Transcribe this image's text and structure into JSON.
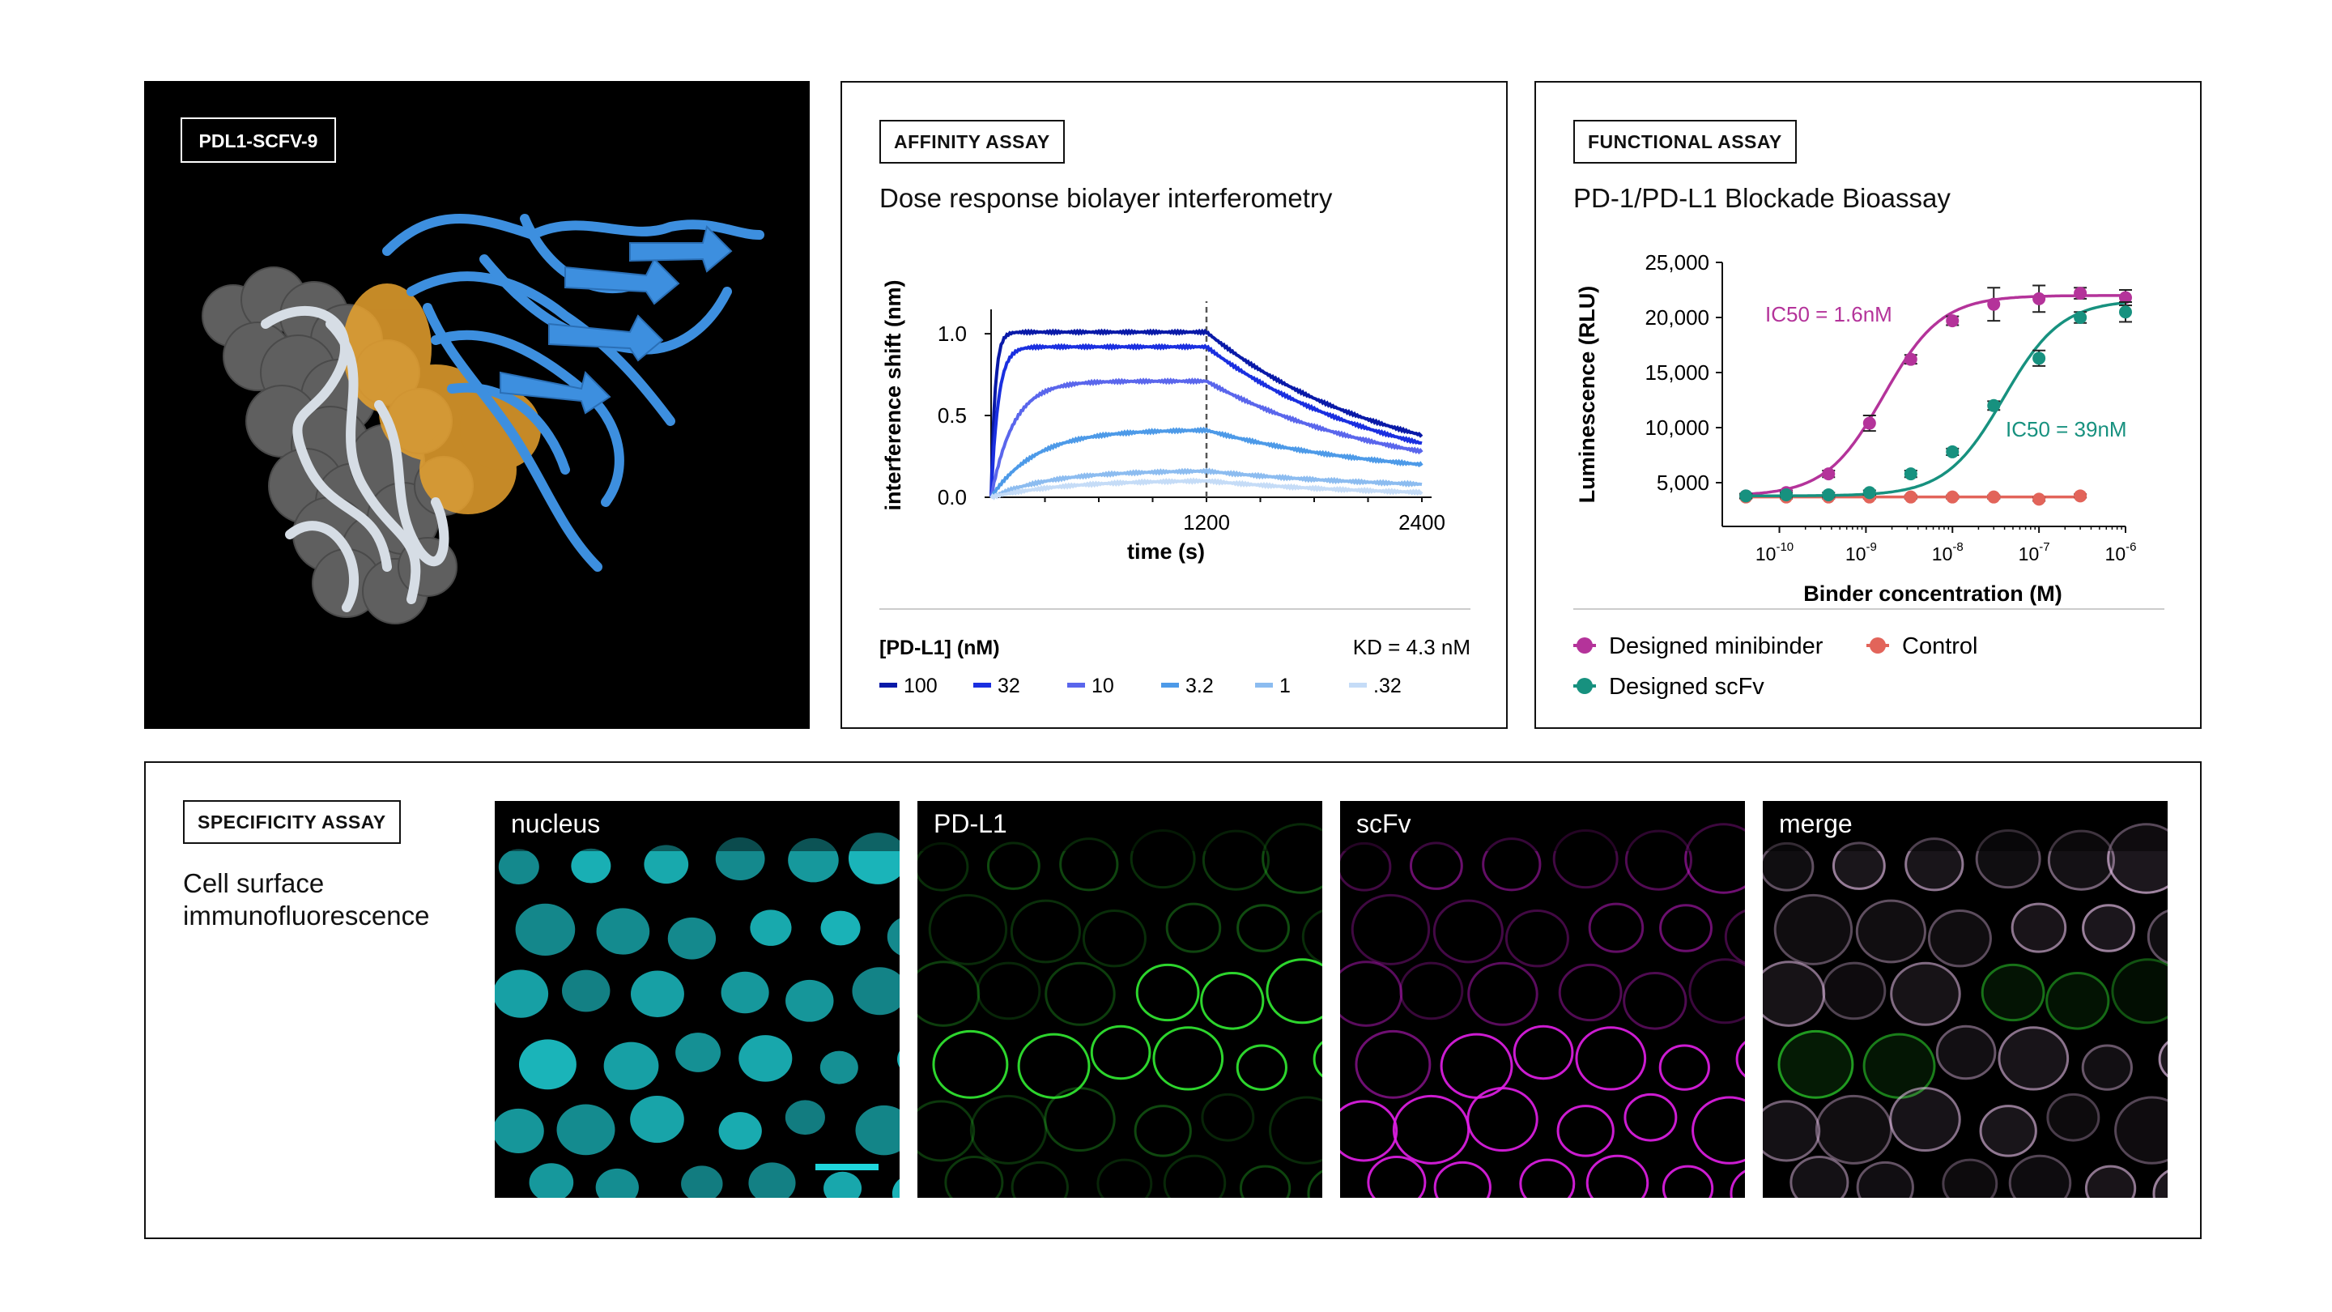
{
  "structure_panel": {
    "tag": "PDL1-SCFV-9",
    "colors": {
      "background": "#000000",
      "surface": "#5f5f5f",
      "interface": "#e8a22e",
      "binder": "#3d8fdf",
      "target_ribbon": "#d6dde5"
    }
  },
  "affinity_panel": {
    "tag": "AFFINITY ASSAY",
    "subtitle": "Dose response biolayer interferometry",
    "legend_title": "[PD-L1] (nM)",
    "kd_text": "KD = 4.3 nM"
  },
  "functional_panel": {
    "tag": "FUNCTIONAL ASSAY",
    "subtitle": "PD-1/PD-L1 Blockade Bioassay",
    "ic50_minibinder": "IC50 = 1.6nM",
    "ic50_scfv": "IC50 = 39nM"
  },
  "specificity_panel": {
    "tag": "SPECIFICITY ASSAY",
    "subtitle_line1": "Cell surface",
    "subtitle_line2": "immunofluorescence",
    "tiles": [
      {
        "label": "nucleus",
        "color": "#1fd6dc"
      },
      {
        "label": "PD-L1",
        "color": "#2fe02f"
      },
      {
        "label": "scFv",
        "color": "#e21fe8"
      },
      {
        "label": "merge",
        "color": "#e6bfe8"
      }
    ]
  },
  "chart_data": [
    {
      "type": "line",
      "xlabel": "time (s)",
      "ylabel": "interference shift (nm)",
      "xlim": [
        0,
        2400
      ],
      "ylim": [
        0,
        1.05
      ],
      "xticks": [
        1200,
        2400
      ],
      "yticks": [
        0.0,
        0.5,
        1.0
      ],
      "ytick_labels": [
        "0.0",
        "0.5",
        "1.0"
      ],
      "dissociation_start": 1200,
      "series": [
        {
          "name": "100",
          "color": "#0a1aa8",
          "association_plateau": 1.01,
          "end_value": 0.38
        },
        {
          "name": "32",
          "color": "#1a2fe0",
          "association_plateau": 0.92,
          "end_value": 0.33
        },
        {
          "name": "10",
          "color": "#5a66ec",
          "association_plateau": 0.71,
          "end_value": 0.28
        },
        {
          "name": "3.2",
          "color": "#4d9ae8",
          "association_plateau": 0.41,
          "end_value": 0.2
        },
        {
          "name": "1",
          "color": "#8cbcf0",
          "association_plateau": 0.16,
          "end_value": 0.08
        },
        {
          "name": ".32",
          "color": "#c5dcf7",
          "association_plateau": 0.1,
          "end_value": 0.03
        }
      ]
    },
    {
      "type": "scatter",
      "xlabel": "Binder concentration (M)",
      "ylabel": "Luminescence (RLU)",
      "x_scale": "log",
      "xlim": [
        4e-11,
        1e-06
      ],
      "ylim": [
        2500,
        25000
      ],
      "yticks": [
        5000,
        10000,
        15000,
        20000,
        25000
      ],
      "ytick_labels": [
        "5,000",
        "10,000",
        "15,000",
        "20,000",
        "25,000"
      ],
      "xticks": [
        1e-10,
        1e-09,
        1e-08,
        1e-07,
        1e-06
      ],
      "xtick_bases": [
        "10",
        "10",
        "10",
        "10",
        "10"
      ],
      "xtick_exponents": [
        "-10",
        "-9",
        "-8",
        "-7",
        "-6"
      ],
      "series": [
        {
          "name": "Designed minibinder",
          "color": "#b4339a",
          "x": [
            4.1e-11,
            1.2e-10,
            3.7e-10,
            1.1e-09,
            3.3e-09,
            1e-08,
            3e-08,
            1e-07,
            3e-07,
            1e-06
          ],
          "y": [
            3800,
            4100,
            5800,
            10400,
            16200,
            19700,
            21200,
            21700,
            22200,
            21800
          ],
          "err": [
            200,
            200,
            300,
            700,
            400,
            400,
            1500,
            1200,
            500,
            700
          ],
          "fit_bottom": 3800,
          "fit_top": 22000,
          "ic50": 1.6e-09
        },
        {
          "name": "Control",
          "color": "#e2645a",
          "x": [
            4.1e-11,
            1.2e-10,
            3.7e-10,
            1.1e-09,
            3.3e-09,
            1e-08,
            3e-08,
            1e-07,
            3e-07
          ],
          "y": [
            3700,
            3700,
            3700,
            3700,
            3700,
            3700,
            3700,
            3500,
            3800
          ],
          "err": [
            150,
            150,
            150,
            150,
            150,
            150,
            150,
            150,
            150
          ]
        },
        {
          "name": "Designed scFv",
          "color": "#17917f",
          "x": [
            4.1e-11,
            1.2e-10,
            3.7e-10,
            1.1e-09,
            3.3e-09,
            1e-08,
            3e-08,
            1e-07,
            3e-07,
            1e-06
          ],
          "y": [
            3800,
            3900,
            3900,
            4100,
            5800,
            7800,
            12000,
            16300,
            20000,
            20500
          ],
          "err": [
            200,
            200,
            200,
            200,
            300,
            300,
            400,
            700,
            500,
            900
          ],
          "fit_bottom": 3800,
          "fit_top": 21600,
          "ic50": 3.9e-08
        }
      ]
    }
  ]
}
